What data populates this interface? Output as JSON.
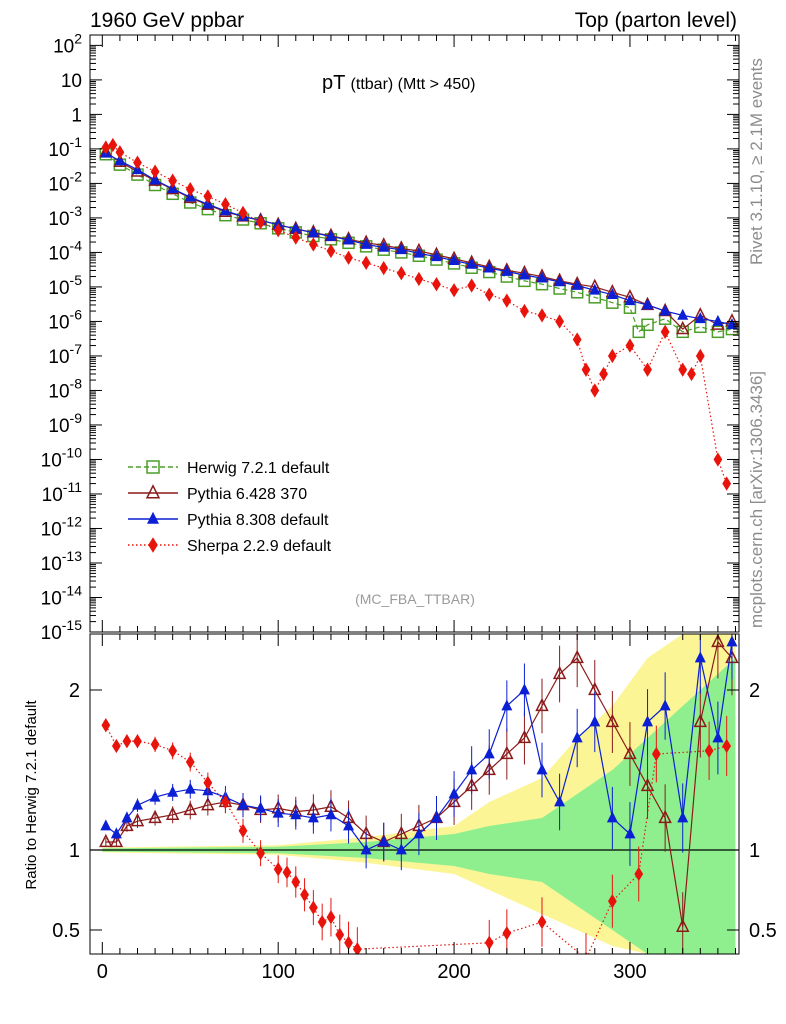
{
  "header": {
    "left": "1960 GeV ppbar",
    "right": "Top (parton level)"
  },
  "side_labels": {
    "rivet": "Rivet 3.1.10, ≥ 2.1M events",
    "mcplots": "mcplots.cern.ch [arXiv:1306.3436]"
  },
  "chart_data": [
    {
      "type": "line",
      "title": "pT (ttbar) (Mtt > 450)",
      "title_main": "pT",
      "title_sub": "(ttbar) (Mtt > 450)",
      "watermark": "(MC_FBA_TTBAR)",
      "xlabel": "",
      "ylabel": "",
      "yscale": "log",
      "xlim": [
        -7,
        362
      ],
      "ylim": [
        1e-15,
        200
      ],
      "y_ticks": [
        "10^2",
        "10",
        "1",
        "10^-1",
        "10^-2",
        "10^-3",
        "10^-4",
        "10^-5",
        "10^-6",
        "10^-7",
        "10^-8",
        "10^-9",
        "10^-10",
        "10^-11",
        "10^-12",
        "10^-13",
        "10^-14",
        "10^-15"
      ],
      "legend_position": "lower-left",
      "series": [
        {
          "name": "Herwig 7.2.1 default",
          "color": "#4a9e28",
          "marker": "open-square",
          "dash": "5,3",
          "x": [
            2,
            10,
            20,
            30,
            40,
            50,
            60,
            70,
            80,
            90,
            100,
            110,
            120,
            130,
            140,
            150,
            160,
            170,
            180,
            190,
            200,
            210,
            220,
            230,
            240,
            250,
            260,
            270,
            280,
            290,
            300,
            305,
            310,
            320,
            330,
            340,
            350,
            358
          ],
          "y": [
            0.07,
            0.035,
            0.018,
            0.009,
            0.005,
            0.0028,
            0.0018,
            0.0012,
            0.0009,
            0.0007,
            0.0005,
            0.00038,
            0.0003,
            0.00024,
            0.00019,
            0.00015,
            0.00012,
            0.0001,
            8e-05,
            6.2e-05,
            4.8e-05,
            3.6e-05,
            2.7e-05,
            2e-05,
            1.5e-05,
            1.2e-05,
            9e-06,
            7e-06,
            5e-06,
            3.5e-06,
            2.5e-06,
            5e-07,
            8e-07,
            1.2e-06,
            5e-07,
            7e-07,
            5e-07,
            6e-07
          ]
        },
        {
          "name": "Pythia 6.428 370",
          "color": "#8b1a1a",
          "marker": "open-triangle",
          "dash": "",
          "x": [
            2,
            10,
            20,
            30,
            40,
            50,
            60,
            70,
            80,
            90,
            100,
            110,
            120,
            130,
            140,
            150,
            160,
            170,
            180,
            190,
            200,
            210,
            220,
            230,
            240,
            250,
            260,
            270,
            280,
            290,
            300,
            310,
            320,
            330,
            340,
            350,
            358
          ],
          "y": [
            0.08,
            0.042,
            0.022,
            0.012,
            0.0068,
            0.0038,
            0.0024,
            0.0015,
            0.0011,
            0.00085,
            0.00063,
            0.00048,
            0.00038,
            0.0003,
            0.00024,
            0.00019,
            0.00016,
            0.00013,
            0.00011,
            8.5e-05,
            6.5e-05,
            5e-05,
            3.8e-05,
            3e-05,
            2.5e-05,
            2e-05,
            1.5e-05,
            1.2e-05,
            1e-05,
            7e-06,
            5e-06,
            3e-06,
            2e-06,
            6e-07,
            1.5e-06,
            8e-07,
            1e-06
          ]
        },
        {
          "name": "Pythia 8.308 default",
          "color": "#0b1fd4",
          "marker": "filled-triangle",
          "dash": "",
          "x": [
            2,
            10,
            20,
            30,
            40,
            50,
            60,
            70,
            80,
            90,
            100,
            110,
            120,
            130,
            140,
            150,
            160,
            170,
            180,
            190,
            200,
            210,
            220,
            230,
            240,
            250,
            260,
            270,
            280,
            290,
            300,
            310,
            320,
            330,
            340,
            350,
            358
          ],
          "y": [
            0.075,
            0.045,
            0.025,
            0.0125,
            0.007,
            0.004,
            0.0025,
            0.0016,
            0.0011,
            0.00085,
            0.00063,
            0.00048,
            0.00037,
            0.00029,
            0.00023,
            0.00017,
            0.00014,
            0.00012,
            9.5e-05,
            7.5e-05,
            5.8e-05,
            4.5e-05,
            3.5e-05,
            2.8e-05,
            2.2e-05,
            1.8e-05,
            1.4e-05,
            1.1e-05,
            8e-06,
            6e-06,
            4e-06,
            3e-06,
            2e-06,
            1.5e-06,
            1.2e-06,
            1e-06,
            8e-07
          ]
        },
        {
          "name": "Sherpa 2.2.9 default",
          "color": "#e8140c",
          "marker": "filled-diamond",
          "dash": "1.5,2.5",
          "x": [
            2,
            6,
            10,
            20,
            30,
            40,
            50,
            60,
            70,
            80,
            90,
            100,
            110,
            120,
            130,
            140,
            150,
            160,
            170,
            180,
            190,
            200,
            210,
            220,
            230,
            240,
            250,
            260,
            270,
            275,
            280,
            285,
            290,
            300,
            310,
            320,
            330,
            335,
            340,
            350,
            355
          ],
          "y": [
            0.11,
            0.13,
            0.08,
            0.04,
            0.022,
            0.012,
            0.0068,
            0.0042,
            0.0025,
            0.0014,
            0.00075,
            0.00044,
            0.00027,
            0.00017,
            0.00011,
            7e-05,
            5e-05,
            3.5e-05,
            2.5e-05,
            1.7e-05,
            1.2e-05,
            8e-06,
            1.1e-05,
            6e-06,
            4e-06,
            2e-06,
            1.5e-06,
            1e-06,
            3e-07,
            4e-08,
            1e-08,
            3e-08,
            1e-07,
            2e-07,
            4e-08,
            5e-07,
            4e-08,
            3e-08,
            1e-07,
            1e-10,
            2e-11
          ]
        }
      ]
    },
    {
      "type": "line",
      "title": "",
      "xlabel": "",
      "ylabel": "Ratio to Herwig 7.2.1 default",
      "xlim": [
        -7,
        362
      ],
      "ylim": [
        0.35,
        2.35
      ],
      "y_ticks_left": [
        "2",
        "1",
        "0.5"
      ],
      "y_ticks_right": [
        "2",
        "1",
        "0.5"
      ],
      "x_ticks": [
        "0",
        "100",
        "200",
        "300"
      ],
      "reference_line": 1,
      "bands": [
        {
          "name": "Herwig MC stat (green)",
          "color": "#8fef8f",
          "x": [
            0,
            100,
            150,
            200,
            220,
            250,
            270,
            290,
            310,
            330,
            350,
            360
          ],
          "lo": [
            0.99,
            0.98,
            0.95,
            0.9,
            0.85,
            0.8,
            0.65,
            0.5,
            0.35,
            0.35,
            0.35,
            0.35
          ],
          "hi": [
            1.01,
            1.02,
            1.05,
            1.1,
            1.15,
            1.2,
            1.35,
            1.5,
            1.7,
            1.9,
            2.1,
            2.2
          ]
        },
        {
          "name": "Herwig MC stat (yellow)",
          "color": "#fbf596",
          "x": [
            0,
            100,
            150,
            200,
            220,
            250,
            270,
            290,
            310,
            330,
            350,
            360
          ],
          "lo": [
            0.985,
            0.97,
            0.92,
            0.85,
            0.75,
            0.6,
            0.5,
            0.4,
            0.35,
            0.35,
            0.35,
            0.35
          ],
          "hi": [
            1.015,
            1.03,
            1.08,
            1.15,
            1.3,
            1.45,
            1.7,
            1.9,
            2.2,
            2.35,
            2.35,
            2.35
          ]
        }
      ],
      "series": [
        {
          "name": "Pythia 6.428 370",
          "color": "#8b1a1a",
          "marker": "open-triangle",
          "x": [
            2,
            8,
            14,
            20,
            30,
            40,
            50,
            60,
            70,
            80,
            90,
            100,
            110,
            120,
            130,
            140,
            150,
            160,
            170,
            180,
            190,
            200,
            210,
            220,
            230,
            240,
            250,
            260,
            270,
            280,
            290,
            300,
            310,
            320,
            330,
            340,
            350,
            358
          ],
          "y": [
            1.05,
            1.05,
            1.15,
            1.18,
            1.2,
            1.22,
            1.25,
            1.28,
            1.3,
            1.28,
            1.25,
            1.26,
            1.24,
            1.25,
            1.27,
            1.2,
            1.1,
            1.05,
            1.1,
            1.15,
            1.2,
            1.3,
            1.4,
            1.5,
            1.6,
            1.7,
            1.9,
            2.1,
            2.2,
            2.0,
            1.8,
            1.6,
            1.4,
            1.2,
            0.52,
            1.8,
            2.3,
            2.2
          ]
        },
        {
          "name": "Pythia 8.308 default",
          "color": "#0b1fd4",
          "marker": "filled-triangle",
          "x": [
            2,
            8,
            14,
            20,
            30,
            40,
            50,
            60,
            70,
            80,
            90,
            100,
            110,
            120,
            130,
            140,
            150,
            160,
            170,
            180,
            190,
            200,
            210,
            220,
            230,
            240,
            250,
            260,
            270,
            280,
            290,
            300,
            310,
            320,
            330,
            340,
            350,
            358
          ],
          "y": [
            1.15,
            1.1,
            1.2,
            1.28,
            1.33,
            1.36,
            1.38,
            1.37,
            1.33,
            1.28,
            1.26,
            1.23,
            1.22,
            1.2,
            1.22,
            1.15,
            1.0,
            1.05,
            1.0,
            1.1,
            1.2,
            1.35,
            1.5,
            1.6,
            1.9,
            2.0,
            1.5,
            1.3,
            1.7,
            1.8,
            1.2,
            1.1,
            1.8,
            1.9,
            1.2,
            2.2,
            1.7,
            2.3
          ]
        },
        {
          "name": "Sherpa 2.2.9 default",
          "color": "#e8140c",
          "marker": "filled-diamond",
          "x": [
            2,
            8,
            14,
            20,
            30,
            40,
            50,
            60,
            70,
            80,
            90,
            100,
            105,
            110,
            115,
            120,
            125,
            130,
            135,
            140,
            145,
            220,
            230,
            250,
            275,
            290,
            305,
            315,
            345,
            355
          ],
          "y": [
            1.78,
            1.65,
            1.68,
            1.68,
            1.66,
            1.62,
            1.55,
            1.42,
            1.3,
            1.12,
            0.98,
            0.88,
            0.86,
            0.8,
            0.72,
            0.64,
            0.55,
            0.58,
            0.47,
            0.42,
            0.38,
            0.42,
            0.48,
            0.55,
            0.32,
            0.68,
            0.85,
            1.6,
            1.62,
            1.65
          ]
        }
      ]
    }
  ]
}
